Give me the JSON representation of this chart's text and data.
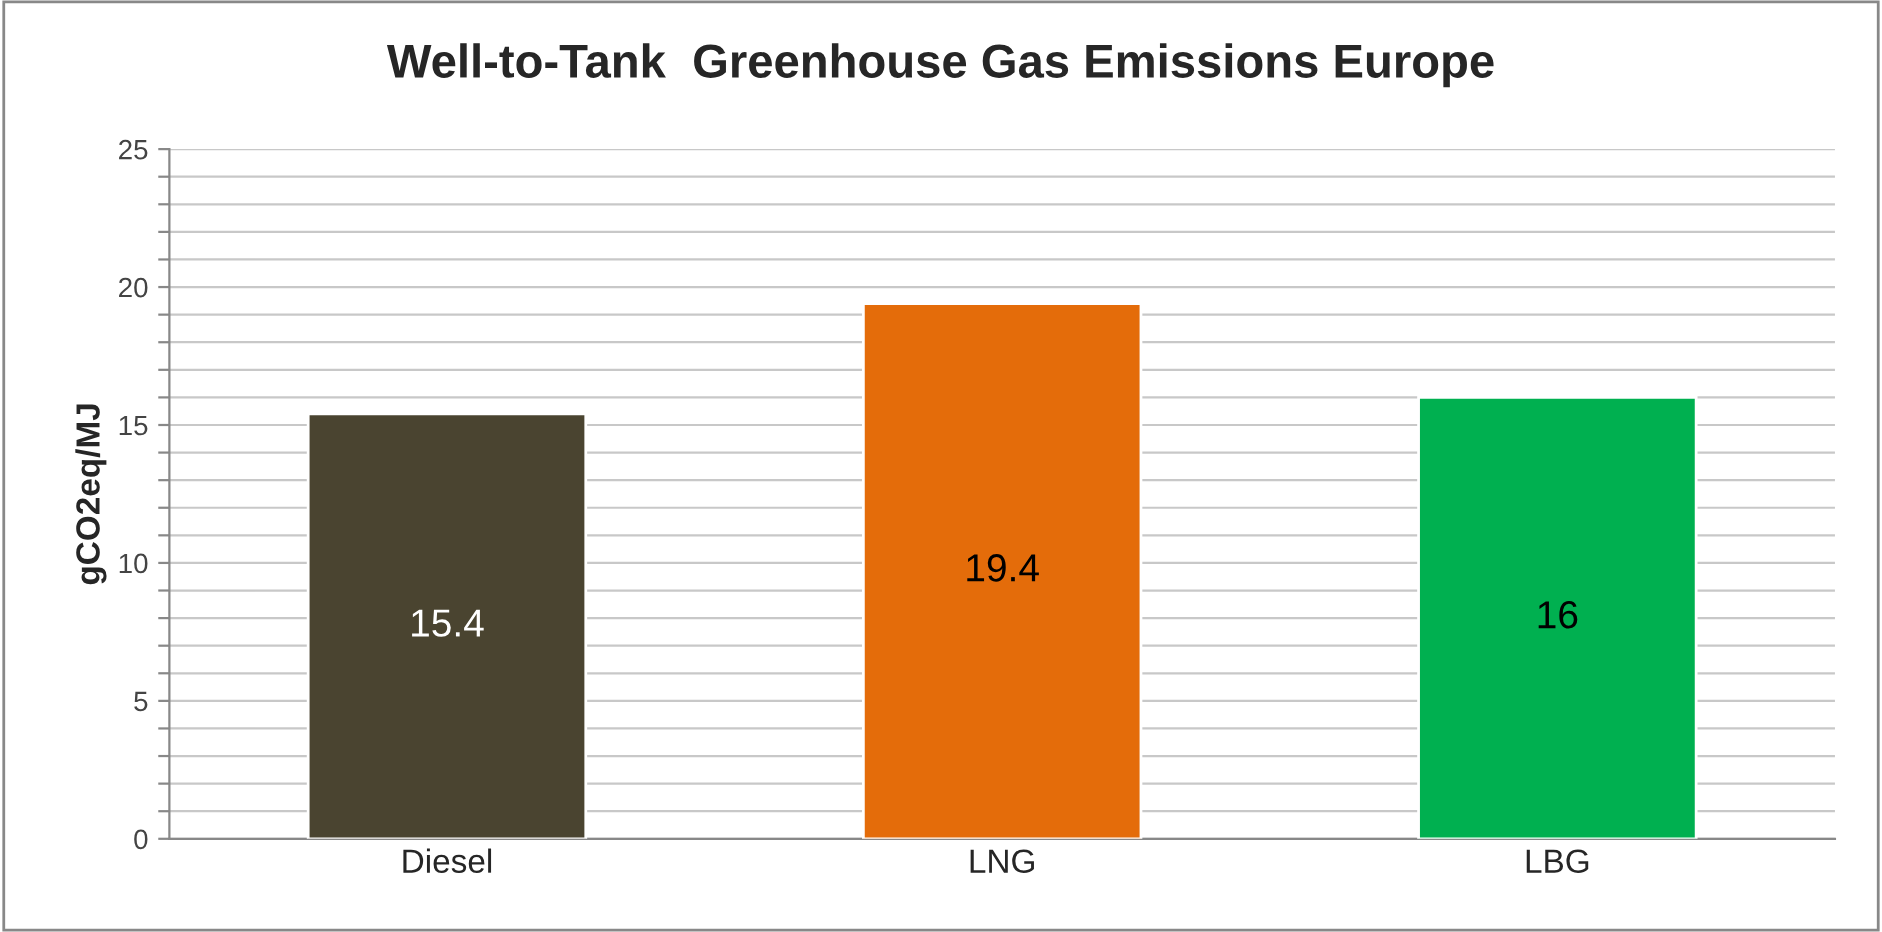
{
  "chart_data": {
    "type": "bar",
    "title": "Well-to-Tank  Greenhouse Gas Emissions Europe",
    "ylabel": "gCO2eq/MJ",
    "categories": [
      "Diesel",
      "LNG",
      "LBG"
    ],
    "values": [
      15.4,
      19.4,
      16
    ],
    "colors": [
      "#4a4430",
      "#e46c0a",
      "#00b050"
    ],
    "data_labels": true,
    "ylim": [
      0,
      25
    ],
    "yticks": [
      0,
      {
        "value": 1,
        "label": null
      },
      {
        "value": 2,
        "label": null
      },
      {
        "value": 3,
        "label": null
      },
      {
        "value": 4,
        "label": null
      },
      5,
      {
        "value": 6,
        "label": null
      },
      {
        "value": 7,
        "label": null
      },
      {
        "value": 8,
        "label": null
      },
      {
        "value": 9,
        "label": null
      },
      10,
      {
        "value": 11,
        "label": null
      },
      {
        "value": 12,
        "label": null
      },
      {
        "value": 13,
        "label": null
      },
      {
        "value": 14,
        "label": null
      },
      15,
      {
        "value": 16,
        "label": null
      },
      {
        "value": 17,
        "label": null
      },
      {
        "value": 18,
        "label": null
      },
      {
        "value": 19,
        "label": null
      },
      20,
      {
        "value": 21,
        "label": null
      },
      {
        "value": 22,
        "label": null
      },
      {
        "value": 23,
        "label": null
      },
      {
        "value": 24,
        "label": null
      },
      25
    ],
    "grid": "y",
    "legend": false
  }
}
